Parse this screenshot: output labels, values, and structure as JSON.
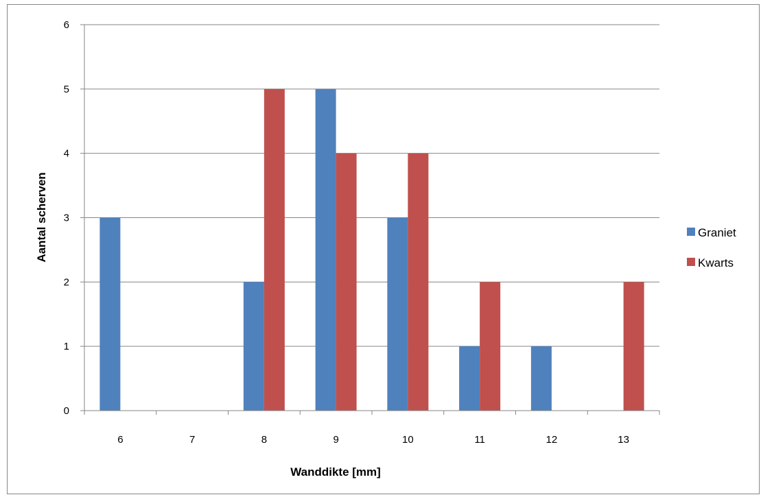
{
  "chart_data": {
    "type": "bar",
    "title": "",
    "xlabel": "Wanddikte [mm]",
    "ylabel": "Aantal scherven",
    "categories": [
      "6",
      "7",
      "8",
      "9",
      "10",
      "11",
      "12",
      "13"
    ],
    "series": [
      {
        "name": "Graniet",
        "color": "#4f81bd",
        "values": [
          3,
          0,
          2,
          5,
          3,
          1,
          1,
          0
        ]
      },
      {
        "name": "Kwarts",
        "color": "#c0504d",
        "values": [
          0,
          0,
          5,
          4,
          4,
          2,
          0,
          2
        ]
      }
    ],
    "ylim": [
      0,
      6
    ],
    "yticks": [
      "0",
      "1",
      "2",
      "3",
      "4",
      "5",
      "6"
    ],
    "grid": true,
    "legend_position": "right"
  }
}
